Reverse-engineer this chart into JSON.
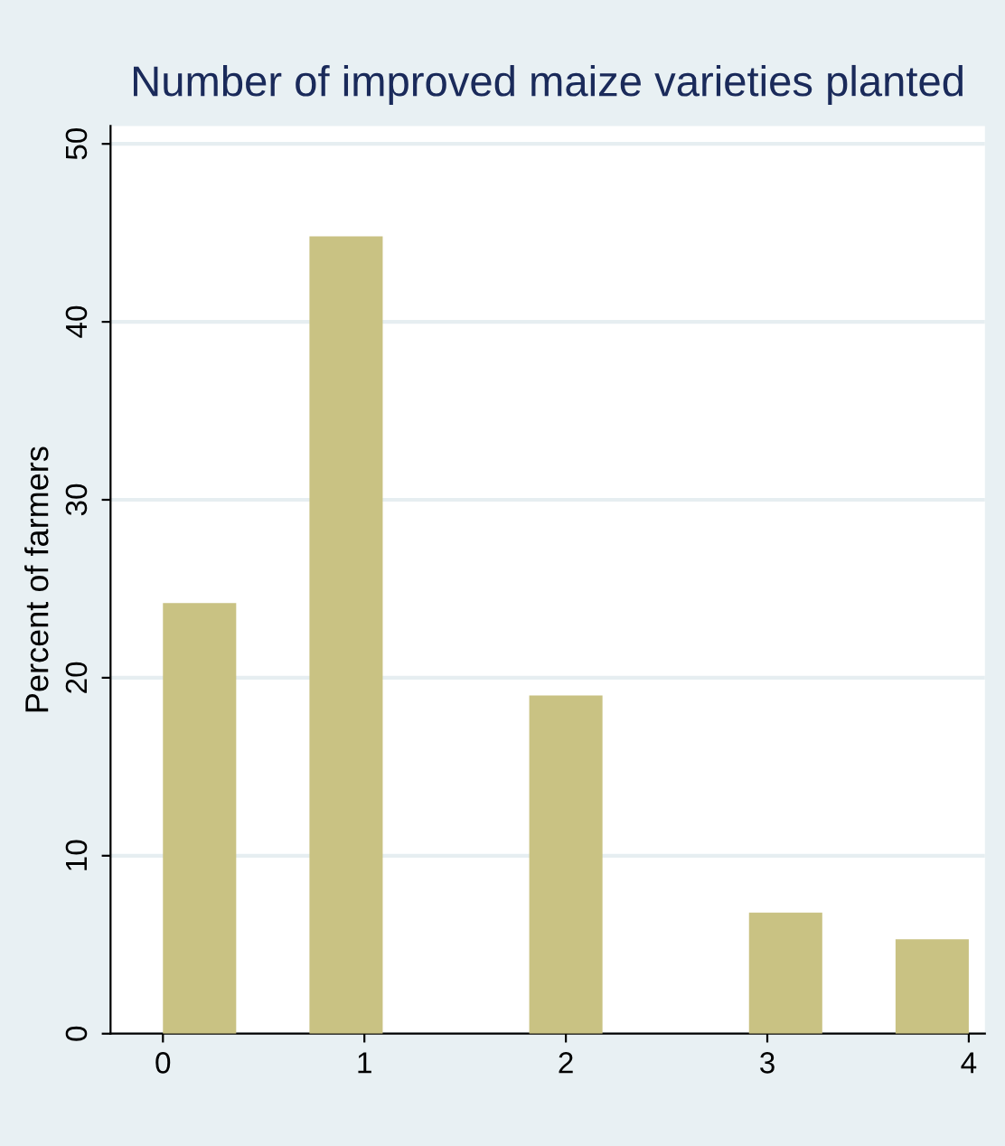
{
  "chart_data": {
    "type": "histogram",
    "title": "Number of improved maize varieties planted",
    "ylabel": "Percent of farmers",
    "bins": [
      0,
      0.3636,
      0.7273,
      1.0909,
      1.4545,
      1.8182,
      2.1818,
      2.5455,
      2.9091,
      3.2727,
      3.6364,
      4.0
    ],
    "values": [
      24.2,
      0,
      44.8,
      0,
      0,
      19.0,
      0,
      0,
      6.8,
      0,
      5.3
    ],
    "color": "#c9c283",
    "xlim": [
      -0.26,
      4.08
    ],
    "xticks": [
      0,
      1,
      2,
      3,
      4
    ],
    "ylim": [
      0,
      51
    ],
    "yticks": [
      0,
      10,
      20,
      30,
      40,
      50
    ],
    "grid": "y"
  }
}
